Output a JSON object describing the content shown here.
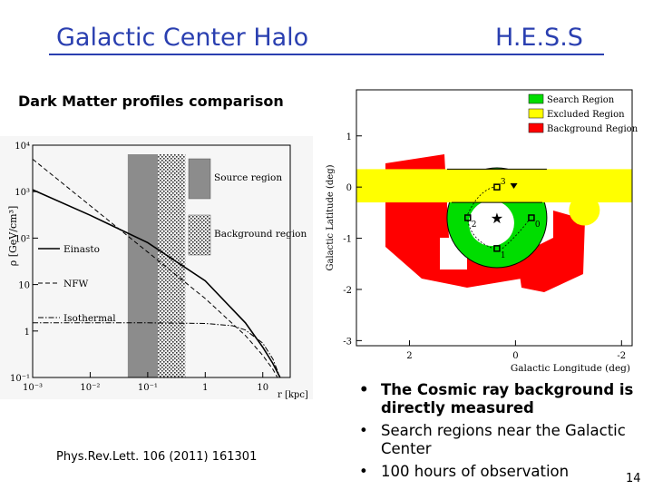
{
  "slide": {
    "title_left": "Galactic Center Halo",
    "title_right": "H.E.S.S",
    "subtitle": "Dark Matter profiles comparison",
    "reference": "Phys.Rev.Lett. 106 (2011) 161301",
    "page_number": "14",
    "bullets": [
      {
        "text": "The Cosmic ray background is directly measured",
        "bold": true
      },
      {
        "text": "Search regions near the Galactic Center",
        "bold": false
      },
      {
        "text": "100 hours of observation",
        "bold": false
      }
    ],
    "colors": {
      "title": "#2a3fb0"
    }
  },
  "chart_data": [
    {
      "type": "line",
      "ylabel": "ρ [GeV/cm³]",
      "xlabel": "r [kpc]",
      "xscale": "log",
      "yscale": "log",
      "xlim": [
        0.001,
        30
      ],
      "ylim": [
        0.1,
        10000
      ],
      "xticks": [
        "10⁻³",
        "10⁻²",
        "10⁻¹",
        "1",
        "10"
      ],
      "yticks": [
        "10⁻¹",
        "1",
        "10",
        "10²",
        "10³",
        "10⁴"
      ],
      "series": [
        {
          "name": "Einasto",
          "style": "solid",
          "x": [
            0.001,
            0.01,
            0.1,
            1,
            5,
            10,
            15,
            20
          ],
          "y": [
            1100,
            310,
            80,
            12,
            1.5,
            0.45,
            0.2,
            0.1
          ]
        },
        {
          "name": "NFW",
          "style": "dashed",
          "x": [
            0.001,
            0.01,
            0.1,
            1,
            5,
            10,
            15,
            18
          ],
          "y": [
            5000,
            500,
            50,
            5,
            0.8,
            0.3,
            0.15,
            0.1
          ]
        },
        {
          "name": "Isothermal",
          "style": "dashdot",
          "x": [
            0.001,
            0.01,
            0.1,
            1,
            3,
            5,
            10,
            15,
            20
          ],
          "y": [
            1.5,
            1.5,
            1.5,
            1.45,
            1.3,
            1.05,
            0.55,
            0.25,
            0.1
          ]
        }
      ],
      "regions": [
        {
          "name": "Source region",
          "x": [
            0.045,
            0.15
          ],
          "fill": "#8c8c8c"
        },
        {
          "name": "Background region",
          "x": [
            0.15,
            0.45
          ],
          "fill": "pattern"
        }
      ]
    },
    {
      "type": "map",
      "xlabel": "Galactic Longitude (deg)",
      "ylabel": "Galactic Latitude (deg)",
      "xlim": [
        3,
        -2.2
      ],
      "ylim": [
        -3.1,
        1.9
      ],
      "xticks": [
        "2",
        "0",
        "-2"
      ],
      "yticks": [
        "-3",
        "-2",
        "-1",
        "0",
        "1"
      ],
      "legend": [
        {
          "name": "Search Region",
          "color": "#00dd00"
        },
        {
          "name": "Excluded Region",
          "color": "#ffff00"
        },
        {
          "name": "Background Region",
          "color": "#ff0000"
        }
      ],
      "points": [
        {
          "label": "0",
          "l": -0.3,
          "b": -0.6
        },
        {
          "label": "1",
          "l": 0.35,
          "b": -1.2
        },
        {
          "label": "2",
          "l": 0.9,
          "b": -0.6
        },
        {
          "label": "3",
          "l": 0.35,
          "b": 0.0
        }
      ],
      "center_marker": {
        "l": 0.35,
        "b": -0.6
      }
    }
  ]
}
